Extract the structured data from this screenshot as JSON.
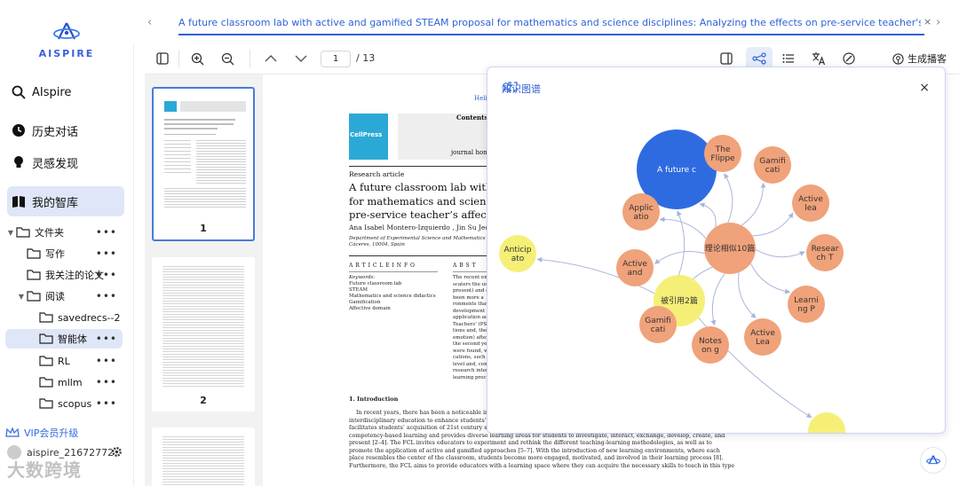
{
  "app": {
    "logo_text": "AISPIRE",
    "accent_color": "#3b5fdc"
  },
  "sidebar": {
    "nav": [
      {
        "label": "AIspire",
        "icon": "search-icon"
      },
      {
        "label": "历史对话",
        "icon": "clock-icon"
      },
      {
        "label": "灵感发现",
        "icon": "bulb-icon"
      },
      {
        "label": "我的智库",
        "icon": "book-icon"
      }
    ],
    "tree": [
      {
        "label": "文件夹",
        "level": 0,
        "expanded": true
      },
      {
        "label": "写作",
        "level": 1
      },
      {
        "label": "我关注的论文",
        "level": 1
      },
      {
        "label": "阅读",
        "level": 1,
        "expanded": true
      },
      {
        "label": "savedrecs--2",
        "level": 2
      },
      {
        "label": "智能体",
        "level": 2,
        "selected": true
      },
      {
        "label": "RL",
        "level": 2
      },
      {
        "label": "mllm",
        "level": 2
      },
      {
        "label": "scopus",
        "level": 2
      }
    ],
    "dots": "•••",
    "vip_label": "VIP会员升级",
    "username": "aispire_21672772",
    "watermark": "大数跨境"
  },
  "tab": {
    "title": "A future classroom lab with active and gamified STEAM proposal for mathematics and science disciplines: Analyzing the effects on pre-service teacher's affective domain.pdf",
    "prev": "‹",
    "next": "›",
    "close": "×"
  },
  "toolbar": {
    "current_page": "1",
    "total_pages": "/ 13",
    "podcast_label": "生成播客"
  },
  "thumbnails": [
    {
      "num": "1"
    },
    {
      "num": "2"
    }
  ],
  "document": {
    "journal_link": "Heliy",
    "contents_label": "Contents li",
    "journal_home": "journal home",
    "publisher": "CellPress",
    "article_type": "Research article",
    "title_lines": [
      "A future classroom lab with active",
      "for mathematics and science discip",
      "pre-service teacher’s affective dom"
    ],
    "authors": "Ana Isabel Montero-Izquierdo , Jin Su Jeong",
    "affiliation_lines": [
      "Department of Experimental Science and Mathematics Education, Teacher Tr",
      "Cáceres, 10004, Spain"
    ],
    "article_info_heading": "A R T I C L E   I N F O",
    "abstract_heading": "A B S T",
    "keywords_label": "Keywords:",
    "keywords": [
      "Future classroom lab",
      "STEAM",
      "Mathematics and science didactics",
      "Gamification",
      "Affective domain"
    ],
    "abstract_lines": [
      "The recent em",
      "scaters the use",
      "present) and d",
      "been more a",
      "ronments that",
      "development o",
      "application ac",
      "Teachers’ (PST",
      "tions and, ther",
      "emotion) after",
      "the second yea",
      "were found, wh",
      "cations, such a",
      "level and, conse",
      "research intend",
      "learning proces"
    ],
    "intro_heading": "1.  Introduction",
    "intro_lines": [
      "In recent years, there has been a noticeable increase in",
      "interdisciplinary education to enhance students’ learning",
      "facilitates students’ acquisition of 21st century skills and",
      "competency-based learning and provides diverse learning areas for students to investigate, interact, exchange, develop, create, and",
      "present [2–4]. The FCL invites educators to experiment and rethink the different teaching-learning methodologies, as well as to",
      "promote the application of active and gamified approaches [5–7]. With the introduction of new learning environments, where each",
      "place resembles the center of the classroom, students become more engaged, motivated, and involved in their learning process [8].",
      "Furthermore, the FCL aims to provide educators with a learning space where they can acquire the necessary skills to teach in this type"
    ]
  },
  "knowledge_graph": {
    "title": "知识图谱",
    "close": "×",
    "colors": {
      "main": "#2f6be0",
      "topic": "#f0a27a",
      "cited": "#f6ef77",
      "edge": "#a9b6dc"
    },
    "nodes": [
      {
        "id": "main",
        "label": "A future c",
        "kind": "main"
      },
      {
        "id": "similar",
        "label": "理论相似10篇",
        "kind": "topic"
      },
      {
        "id": "cited",
        "label": "被引用2篇",
        "kind": "cited"
      },
      {
        "id": "n1",
        "label": "The Flippe",
        "kind": "topic"
      },
      {
        "id": "n2",
        "label": "Gamifi cati",
        "kind": "topic"
      },
      {
        "id": "n3",
        "label": "Active lea",
        "kind": "topic"
      },
      {
        "id": "n4",
        "label": "Resear ch T",
        "kind": "topic"
      },
      {
        "id": "n5",
        "label": "Learni ng P",
        "kind": "topic"
      },
      {
        "id": "n6",
        "label": "Active Lea",
        "kind": "topic"
      },
      {
        "id": "n7",
        "label": "Notes on g",
        "kind": "topic"
      },
      {
        "id": "n8",
        "label": "Gamifi cati",
        "kind": "topic"
      },
      {
        "id": "n9",
        "label": "Active and",
        "kind": "topic"
      },
      {
        "id": "n10",
        "label": "Applic atio",
        "kind": "topic"
      },
      {
        "id": "c1",
        "label": "Anticip ato",
        "kind": "cited"
      },
      {
        "id": "c2",
        "label": "",
        "kind": "cited"
      }
    ]
  }
}
